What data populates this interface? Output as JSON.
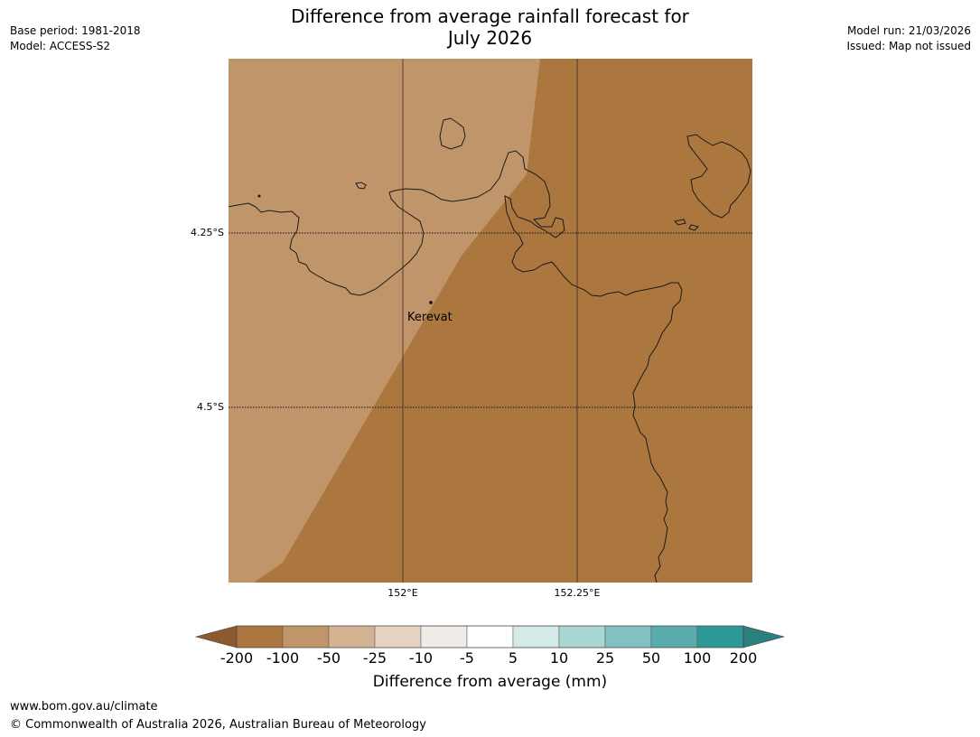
{
  "header": {
    "base_period": "Base period: 1981-2018",
    "model": "Model: ACCESS-S2",
    "model_run": "Model run: 21/03/2026",
    "issued": "Issued: Map not issued",
    "title_line1": "Difference from average rainfall forecast for",
    "title_line2": "July 2026"
  },
  "map": {
    "place_label": "Kerevat",
    "lat_labels": [
      "4.25°S",
      "4.5°S"
    ],
    "lon_labels": [
      "152°E",
      "152.25°E"
    ],
    "colors": {
      "ocean_band": "#c0956a",
      "main": "#ab773f",
      "coast": "#1a1a1a"
    }
  },
  "colorbar": {
    "ticks": [
      "-200",
      "-100",
      "-50",
      "-25",
      "-10",
      "-5",
      "5",
      "10",
      "25",
      "50",
      "100",
      "200"
    ],
    "colors": [
      "#ab773f",
      "#c0956a",
      "#d4b393",
      "#e6d3c1",
      "#efebe7",
      "#ffffff",
      "#d6e9e9",
      "#aad6d6",
      "#82c1bf",
      "#5aabab",
      "#2e9897"
    ],
    "low_extend_color": "#8c5a2e",
    "high_extend_color": "#2a7f7f",
    "label": "Difference from average (mm)"
  },
  "footer": {
    "url": "www.bom.gov.au/climate",
    "copyright": "© Commonwealth of Australia 2026, Australian Bureau of Meteorology"
  }
}
